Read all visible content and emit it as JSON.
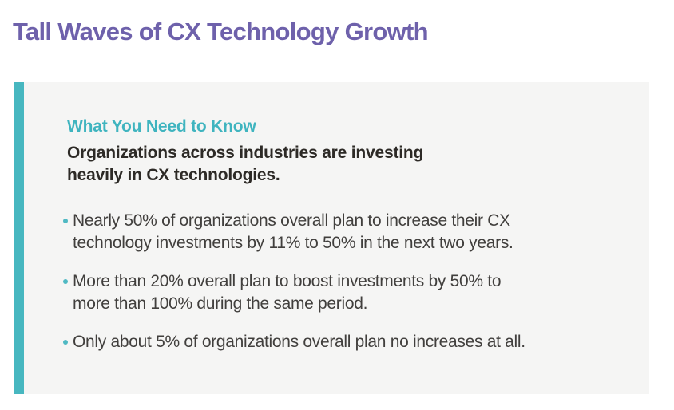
{
  "page": {
    "title": "Tall Waves of CX Technology Growth"
  },
  "card": {
    "heading": "What You Need to Know",
    "intro": "Organizations across industries are investing\nheavily in CX technologies.",
    "bullets": [
      {
        "text": "Nearly 50% of organizations overall plan to increase their CX\ntechnology investments by 11% to 50% in the next two years."
      },
      {
        "text": "More than 20% overall plan to boost investments by 50% to\nmore than 100% during the same period."
      },
      {
        "text": "Only about 5% of organizations overall plan no increases at all."
      }
    ]
  },
  "colors": {
    "title_purple": "#6e61ab",
    "accent_teal": "#47b7c0",
    "bullet_teal": "#4fb9c3",
    "card_background": "#f5f5f4",
    "intro_text": "#2d2a26",
    "body_text": "#413f3d"
  }
}
